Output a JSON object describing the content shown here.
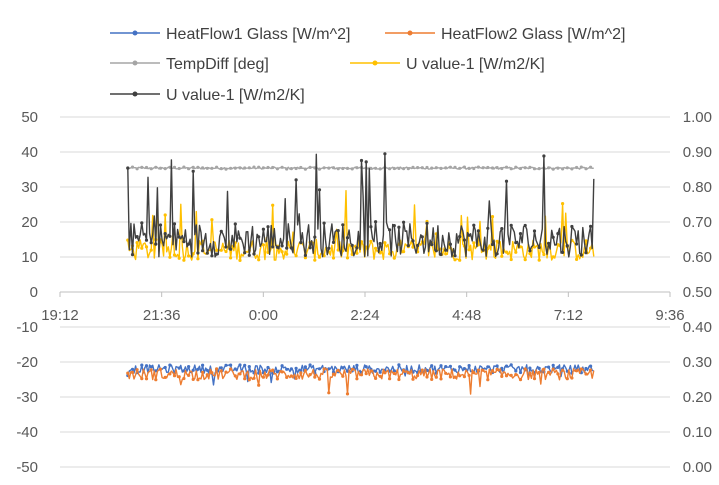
{
  "chart_data": {
    "type": "line",
    "title": "",
    "x_axis": {
      "min_hours": 19.2,
      "max_hours": 33.6,
      "tick_labels": [
        "19:12",
        "21:36",
        "0:00",
        "2:24",
        "4:48",
        "7:12",
        "9:36"
      ]
    },
    "y_left": {
      "min": -50,
      "max": 50,
      "step": 10,
      "tick_labels": [
        "50",
        "40",
        "30",
        "20",
        "10",
        "0",
        "-10",
        "-20",
        "-30",
        "-40",
        "-50"
      ]
    },
    "y_right": {
      "min": 0.0,
      "max": 1.0,
      "step": 0.1,
      "tick_labels": [
        "1.00",
        "0.90",
        "0.80",
        "0.70",
        "0.60",
        "0.50",
        "0.40",
        "0.30",
        "0.20",
        "0.10",
        "0.00"
      ]
    },
    "gridlines": true,
    "legend_position": "top",
    "data_range_hours": [
      20.8,
      31.8
    ],
    "series": [
      {
        "name": "HeatFlow1 Glass [W/m^2]",
        "axis": "left",
        "color": "#4472C4",
        "approx_mean": -22,
        "approx_noise": 1.2
      },
      {
        "name": "HeatFlow2 Glass [W/m^2]",
        "axis": "left",
        "color": "#ED7D31",
        "approx_mean": -23.5,
        "approx_noise": 1.6
      },
      {
        "name": "TempDiff [deg]",
        "axis": "left",
        "color": "#A5A5A5",
        "approx_mean": 35.4,
        "approx_noise": 0.3
      },
      {
        "name": "U value-1 [W/m2/K]",
        "axis": "right",
        "color": "#FFC000",
        "approx_mean": 0.62,
        "approx_noise": 0.03
      },
      {
        "name": "U value-1 [W/m2/K]",
        "axis": "right",
        "color": "#404040",
        "approx_mean": 0.65,
        "approx_noise": 0.05
      }
    ]
  }
}
